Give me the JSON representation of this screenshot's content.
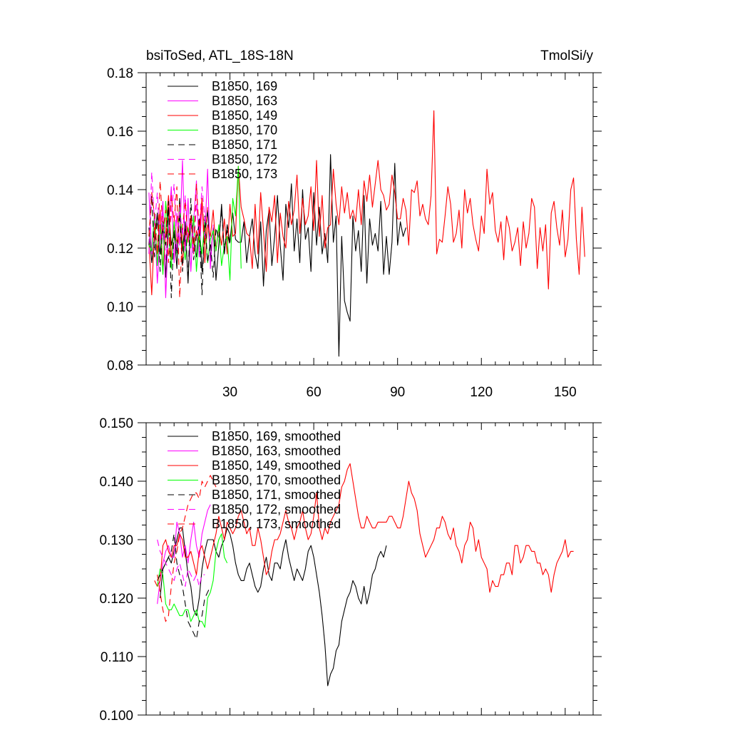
{
  "chart_data": [
    {
      "type": "line",
      "title": "bsiToSed, ATL_18S-18N",
      "units": "TmolSi/y",
      "xlim": [
        0,
        160
      ],
      "ylim": [
        0.08,
        0.18
      ],
      "xticks": [
        30,
        60,
        90,
        120,
        150
      ],
      "xtick_labels": [
        "30",
        "60",
        "90",
        "120",
        "150"
      ],
      "yticks": [
        0.08,
        0.1,
        0.12,
        0.14,
        0.16,
        0.18
      ],
      "ytick_labels": [
        "0.08",
        "0.10",
        "0.12",
        "0.14",
        "0.16",
        "0.18"
      ],
      "legend_position": "top-left",
      "series": [
        {
          "name": "B1850, 169",
          "color": "#000000",
          "dash": "solid",
          "x_start": 1,
          "values": [
            0.127,
            0.115,
            0.123,
            0.132,
            0.118,
            0.128,
            0.11,
            0.134,
            0.121,
            0.126,
            0.113,
            0.137,
            0.119,
            0.129,
            0.108,
            0.131,
            0.122,
            0.117,
            0.13,
            0.112,
            0.124,
            0.133,
            0.116,
            0.127,
            0.109,
            0.121,
            0.135,
            0.118,
            0.128,
            0.122,
            0.132,
            0.123,
            0.122,
            0.122,
            0.129,
            0.115,
            0.124,
            0.13,
            0.118,
            0.113,
            0.129,
            0.107,
            0.126,
            0.133,
            0.114,
            0.124,
            0.138,
            0.121,
            0.109,
            0.135,
            0.127,
            0.142,
            0.119,
            0.13,
            0.115,
            0.14,
            0.123,
            0.127,
            0.112,
            0.139,
            0.121,
            0.134,
            0.118,
            0.125,
            0.115,
            0.152,
            0.122,
            0.131,
            0.083,
            0.124,
            0.102,
            0.098,
            0.095,
            0.131,
            0.119,
            0.126,
            0.112,
            0.138,
            0.108,
            0.13,
            0.121,
            0.125,
            0.119,
            0.136,
            0.111,
            0.124,
            0.111,
            0.122,
            0.149,
            0.121,
            0.129,
            0.124,
            0.127
          ]
        },
        {
          "name": "B1850, 163",
          "color": "#ff00ff",
          "dash": "solid",
          "x_start": 1,
          "values": [
            0.139,
            0.118,
            0.131,
            0.108,
            0.124,
            0.136,
            0.103,
            0.127,
            0.141,
            0.115,
            0.132,
            0.121,
            0.15,
            0.119,
            0.137,
            0.112,
            0.129,
            0.143,
            0.117,
            0.135,
            0.123,
            0.147,
            0.113,
            0.128
          ]
        },
        {
          "name": "B1850, 149",
          "color": "#ff0000",
          "dash": "solid",
          "x_start": 1,
          "values": [
            0.122,
            0.104,
            0.127,
            0.118,
            0.133,
            0.112,
            0.125,
            0.138,
            0.116,
            0.129,
            0.121,
            0.135,
            0.114,
            0.127,
            0.123,
            0.131,
            0.118,
            0.126,
            0.122,
            0.137,
            0.115,
            0.128,
            0.124,
            0.133,
            0.119,
            0.127,
            0.121,
            0.13,
            0.118,
            0.135,
            0.124,
            0.125,
            0.148,
            0.134,
            0.13,
            0.125,
            0.124,
            0.113,
            0.135,
            0.118,
            0.139,
            0.126,
            0.112,
            0.134,
            0.129,
            0.138,
            0.115,
            0.132,
            0.124,
            0.12,
            0.136,
            0.128,
            0.133,
            0.145,
            0.125,
            0.137,
            0.128,
            0.131,
            0.141,
            0.126,
            0.15,
            0.124,
            0.138,
            0.12,
            0.127,
            0.128,
            0.147,
            0.135,
            0.128,
            0.141,
            0.132,
            0.139,
            0.13,
            0.133,
            0.129,
            0.14,
            0.128,
            0.143,
            0.136,
            0.145,
            0.134,
            0.142,
            0.15,
            0.14,
            0.138,
            0.133,
            0.135,
            0.145,
            0.139,
            0.13,
            0.13,
            0.137,
            0.133,
            0.121,
            0.14,
            0.139,
            0.143,
            0.131,
            0.135,
            0.13,
            0.128,
            0.138,
            0.167,
            0.118,
            0.123,
            0.122,
            0.131,
            0.141,
            0.135,
            0.122,
            0.125,
            0.133,
            0.12,
            0.14,
            0.132,
            0.137,
            0.128,
            0.123,
            0.119,
            0.131,
            0.125,
            0.147,
            0.135,
            0.139,
            0.126,
            0.122,
            0.129,
            0.116,
            0.131,
            0.127,
            0.119,
            0.122,
            0.127,
            0.114,
            0.129,
            0.12,
            0.125,
            0.137,
            0.134,
            0.113,
            0.127,
            0.119,
            0.128,
            0.106,
            0.132,
            0.136,
            0.127,
            0.121,
            0.133,
            0.117,
            0.123,
            0.14,
            0.144,
            0.123,
            0.111,
            0.134,
            0.117
          ]
        },
        {
          "name": "B1850, 170",
          "color": "#00ff00",
          "dash": "solid",
          "x_start": 1,
          "values": [
            0.121,
            0.119,
            0.132,
            0.114,
            0.128,
            0.111,
            0.136,
            0.125,
            0.113,
            0.129,
            0.118,
            0.134,
            0.122,
            0.116,
            0.127,
            0.12,
            0.131,
            0.112,
            0.125,
            0.118,
            0.129,
            0.115,
            0.123,
            0.126,
            0.119,
            0.128,
            0.114,
            0.121,
            0.124,
            0.109,
            0.137,
            0.131,
            0.148,
            0.113
          ]
        },
        {
          "name": "B1850, 171",
          "color": "#000000",
          "dash": "dashed",
          "x_start": 1,
          "values": [
            0.121,
            0.138,
            0.117,
            0.131,
            0.112,
            0.129,
            0.121,
            0.136,
            0.103,
            0.126,
            0.118,
            0.132,
            0.112,
            0.128,
            0.109,
            0.137,
            0.116,
            0.124,
            0.128,
            0.104,
            0.131,
            0.115,
            0.122,
            0.11,
            0.127,
            0.123,
            0.133,
            0.119,
            0.126,
            0.121
          ]
        },
        {
          "name": "B1850, 172",
          "color": "#ff00ff",
          "dash": "dashed",
          "x_start": 1,
          "values": [
            0.118,
            0.146,
            0.128,
            0.139,
            0.121,
            0.133,
            0.116,
            0.125,
            0.131,
            0.142,
            0.119,
            0.134,
            0.124,
            0.138,
            0.122,
            0.129,
            0.118,
            0.135,
            0.126,
            0.141,
            0.13,
            0.127
          ]
        },
        {
          "name": "B1850, 173",
          "color": "#ff0000",
          "dash": "dashed",
          "x_start": 1,
          "values": [
            0.124,
            0.139,
            0.131,
            0.118,
            0.143,
            0.126,
            0.133,
            0.115,
            0.138,
            0.129,
            0.141,
            0.103,
            0.127,
            0.136,
            0.122,
            0.131,
            0.119,
            0.142,
            0.125,
            0.137,
            0.121,
            0.134
          ]
        }
      ]
    },
    {
      "type": "line",
      "title": "",
      "xlim": [
        0,
        160
      ],
      "ylim": [
        0.1,
        0.15
      ],
      "xticks": [
        30,
        60,
        90,
        120,
        150
      ],
      "xtick_labels": [],
      "yticks": [
        0.1,
        0.11,
        0.12,
        0.13,
        0.14,
        0.15
      ],
      "ytick_labels": [
        "0.100",
        "0.110",
        "0.120",
        "0.130",
        "0.140",
        "0.150"
      ],
      "legend_position": "top-left",
      "series": [
        {
          "name": "B1850, 169, smoothed",
          "color": "#000000",
          "dash": "solid",
          "x_start": 5,
          "values": [
            0.12,
            0.125,
            0.126,
            0.127,
            0.126,
            0.128,
            0.13,
            0.132,
            0.132,
            0.128,
            0.124,
            0.122,
            0.118,
            0.117,
            0.12,
            0.125,
            0.128,
            0.13,
            0.13,
            0.13,
            0.128,
            0.127,
            0.129,
            0.13,
            0.132,
            0.131,
            0.129,
            0.126,
            0.124,
            0.123,
            0.123,
            0.125,
            0.126,
            0.124,
            0.122,
            0.121,
            0.122,
            0.125,
            0.127,
            0.124,
            0.123,
            0.126,
            0.126,
            0.125,
            0.128,
            0.13,
            0.127,
            0.125,
            0.123,
            0.125,
            0.124,
            0.123,
            0.125,
            0.128,
            0.129,
            0.127,
            0.124,
            0.121,
            0.117,
            0.112,
            0.105,
            0.107,
            0.108,
            0.111,
            0.112,
            0.116,
            0.118,
            0.12,
            0.121,
            0.123,
            0.122,
            0.12,
            0.119,
            0.122,
            0.119,
            0.121,
            0.124,
            0.125,
            0.127,
            0.128,
            0.127,
            0.129
          ]
        },
        {
          "name": "B1850, 163, smoothed",
          "color": "#ff00ff",
          "dash": "solid",
          "x_start": 4,
          "values": [
            0.119,
            0.123,
            0.126,
            0.128,
            0.129,
            0.127,
            0.127,
            0.133,
            0.131,
            0.127,
            0.129,
            0.126,
            0.13,
            0.133,
            0.129,
            0.127,
            0.131,
            0.133,
            0.135,
            0.136
          ]
        },
        {
          "name": "B1850, 149, smoothed",
          "color": "#ff0000",
          "dash": "solid",
          "x_start": 3,
          "values": [
            0.123,
            0.122,
            0.123,
            0.129,
            0.13,
            0.128,
            0.127,
            0.129,
            0.129,
            0.131,
            0.13,
            0.127,
            0.127,
            0.128,
            0.126,
            0.124,
            0.128,
            0.129,
            0.127,
            0.125,
            0.127,
            0.129,
            0.131,
            0.134,
            0.132,
            0.13,
            0.133,
            0.132,
            0.131,
            0.132,
            0.134,
            0.135,
            0.133,
            0.131,
            0.132,
            0.129,
            0.129,
            0.132,
            0.13,
            0.127,
            0.124,
            0.125,
            0.128,
            0.13,
            0.13,
            0.131,
            0.133,
            0.135,
            0.133,
            0.132,
            0.13,
            0.132,
            0.133,
            0.135,
            0.132,
            0.13,
            0.131,
            0.134,
            0.138,
            0.132,
            0.13,
            0.132,
            0.131,
            0.133,
            0.134,
            0.135,
            0.136,
            0.139,
            0.14,
            0.142,
            0.143,
            0.14,
            0.137,
            0.134,
            0.132,
            0.132,
            0.134,
            0.133,
            0.132,
            0.132,
            0.133,
            0.133,
            0.133,
            0.133,
            0.134,
            0.134,
            0.133,
            0.132,
            0.132,
            0.134,
            0.137,
            0.14,
            0.138,
            0.137,
            0.135,
            0.131,
            0.129,
            0.127,
            0.128,
            0.129,
            0.13,
            0.132,
            0.132,
            0.134,
            0.133,
            0.131,
            0.13,
            0.132,
            0.129,
            0.128,
            0.126,
            0.129,
            0.13,
            0.133,
            0.132,
            0.128,
            0.13,
            0.127,
            0.126,
            0.125,
            0.121,
            0.123,
            0.122,
            0.122,
            0.124,
            0.124,
            0.126,
            0.126,
            0.124,
            0.129,
            0.129,
            0.126,
            0.127,
            0.129,
            0.129,
            0.128,
            0.128,
            0.126,
            0.126,
            0.124,
            0.125,
            0.124,
            0.121,
            0.124,
            0.126,
            0.127,
            0.128,
            0.13,
            0.127,
            0.128,
            0.128
          ]
        },
        {
          "name": "B1850, 170, smoothed",
          "color": "#00ff00",
          "dash": "solid",
          "x_start": 4,
          "values": [
            0.122,
            0.125,
            0.124,
            0.119,
            0.118,
            0.118,
            0.119,
            0.118,
            0.117,
            0.117,
            0.118,
            0.118,
            0.116,
            0.117,
            0.118,
            0.116,
            0.116,
            0.115,
            0.12,
            0.121,
            0.123,
            0.128,
            0.13,
            0.131,
            0.127,
            0.126
          ]
        },
        {
          "name": "B1850, 171, smoothed",
          "color": "#000000",
          "dash": "dashed",
          "x_start": 4,
          "values": [
            0.123,
            0.124,
            0.125,
            0.126,
            0.127,
            0.128,
            0.131,
            0.126,
            0.124,
            0.122,
            0.119,
            0.116,
            0.115,
            0.114,
            0.113,
            0.116,
            0.117,
            0.12,
            0.121,
            0.122
          ]
        },
        {
          "name": "B1850, 172, smoothed",
          "color": "#ff00ff",
          "dash": "dashed",
          "x_start": 4,
          "values": [
            0.13,
            0.128,
            0.127,
            0.126,
            0.125,
            0.124,
            0.123,
            0.125,
            0.126,
            0.124,
            0.122,
            0.125,
            0.124,
            0.123,
            0.124,
            0.122,
            0.124,
            0.124
          ]
        },
        {
          "name": "B1850, 173, smoothed",
          "color": "#ff0000",
          "dash": "dashed",
          "x_start": 4,
          "values": [
            0.124,
            0.121,
            0.118,
            0.116,
            0.117,
            0.122,
            0.126,
            0.128,
            0.131,
            0.132,
            0.134,
            0.136,
            0.137,
            0.138,
            0.138,
            0.137,
            0.14,
            0.139,
            0.14,
            0.141,
            0.14,
            0.139
          ]
        }
      ]
    }
  ]
}
